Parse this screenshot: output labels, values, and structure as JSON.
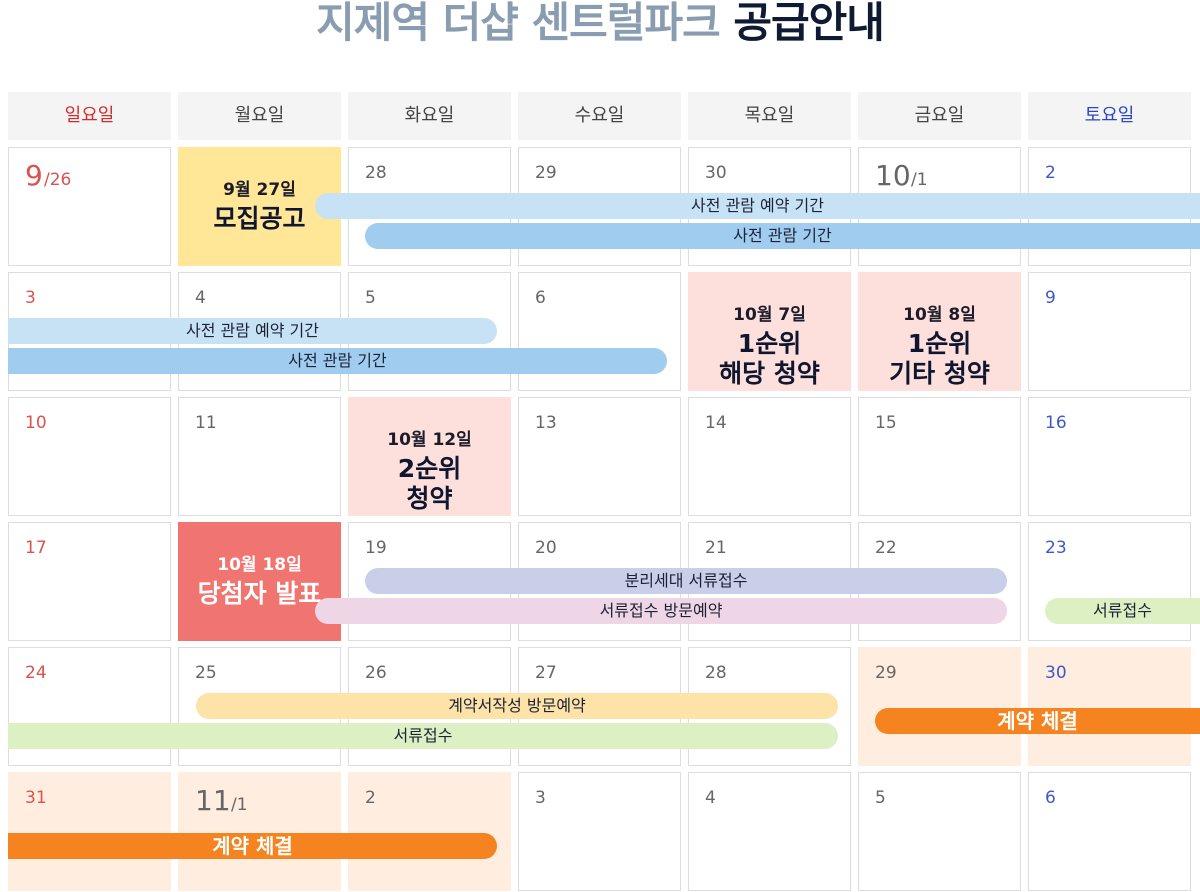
{
  "title": {
    "part1": "지제역 더샵 센트럴파크",
    "part2": "공급안내"
  },
  "weekdays": [
    "일요일",
    "월요일",
    "화요일",
    "수요일",
    "목요일",
    "금요일",
    "토요일"
  ],
  "weeks": [
    [
      {
        "n": "9",
        "sub": "/26"
      },
      {
        "n": ""
      },
      {
        "n": "28"
      },
      {
        "n": "29"
      },
      {
        "n": "30"
      },
      {
        "n": "10",
        "sub": "/1"
      },
      {
        "n": "2"
      }
    ],
    [
      {
        "n": "3"
      },
      {
        "n": "4"
      },
      {
        "n": "5"
      },
      {
        "n": "6"
      },
      {
        "n": ""
      },
      {
        "n": ""
      },
      {
        "n": "9"
      }
    ],
    [
      {
        "n": "10"
      },
      {
        "n": "11"
      },
      {
        "n": ""
      },
      {
        "n": "13"
      },
      {
        "n": "14"
      },
      {
        "n": "15"
      },
      {
        "n": "16"
      }
    ],
    [
      {
        "n": "17"
      },
      {
        "n": ""
      },
      {
        "n": "19"
      },
      {
        "n": "20"
      },
      {
        "n": "21"
      },
      {
        "n": "22"
      },
      {
        "n": "23"
      }
    ],
    [
      {
        "n": "24"
      },
      {
        "n": "25"
      },
      {
        "n": "26"
      },
      {
        "n": "27"
      },
      {
        "n": "28"
      },
      {
        "n": "29"
      },
      {
        "n": "30"
      }
    ],
    [
      {
        "n": "31"
      },
      {
        "n": "11",
        "sub": "/1"
      },
      {
        "n": "2"
      },
      {
        "n": "3"
      },
      {
        "n": "4"
      },
      {
        "n": "5"
      },
      {
        "n": "6"
      }
    ]
  ],
  "events": [
    {
      "date": "9월 27일",
      "label": "모집공고",
      "color": "#ffe797"
    },
    {
      "date": "10월 7일",
      "label": "1순위\n해당 청약",
      "color": "#fde0dc"
    },
    {
      "date": "10월 8일",
      "label": "1순위\n기타 청약",
      "color": "#fde0dc"
    },
    {
      "date": "10월 12일",
      "label": "2순위\n청약",
      "color": "#fde0dc"
    },
    {
      "date": "10월 18일",
      "label": "당첨자 발표",
      "color": "#f07470"
    }
  ],
  "bars": {
    "preview_reservation": "사전 관람 예약 기간",
    "preview": "사전 관람 기간",
    "separate_household_docs": "분리세대 서류접수",
    "docs_visit_reservation": "서류접수 방문예약",
    "docs": "서류접수",
    "contract_visit_reservation": "계약서작성 방문예약",
    "contract": "계약 체결"
  },
  "colors": {
    "sunday": "#d9534f",
    "saturday": "#3f57c8",
    "preview_reservation_bar": "#c8e2f5",
    "preview_bar": "#9fccef",
    "separate_docs_bar": "#c9cfe9",
    "docs_visit_bar": "#efd6e6",
    "docs_bar": "#dcf0c4",
    "contract_visit_bar": "#fde3a8",
    "contract_bar": "#f5831f",
    "contract_cell": "#ffeee0"
  }
}
